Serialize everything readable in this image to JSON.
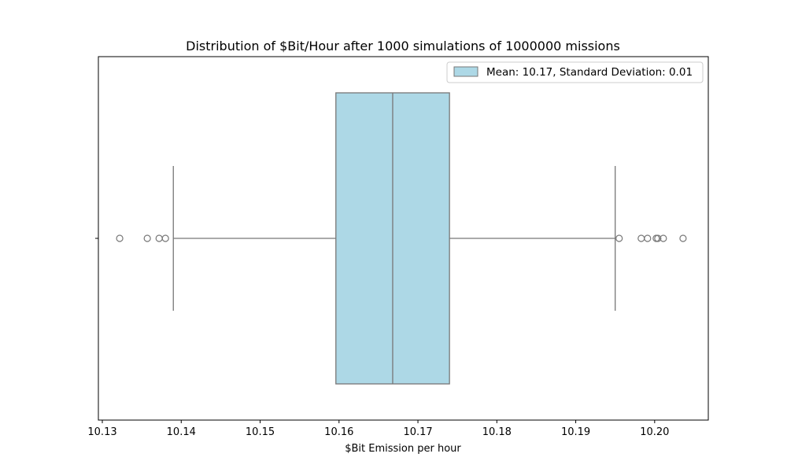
{
  "chart_data": {
    "type": "box",
    "title": "Distribution of $Bit/Hour after 1000 simulations of 1000000 missions",
    "xlabel": "$Bit Emission per hour",
    "ylabel": "",
    "xlim": [
      10.1295,
      10.2068
    ],
    "xticks": [
      10.13,
      10.14,
      10.15,
      10.16,
      10.17,
      10.18,
      10.19,
      10.2
    ],
    "xtick_labels": [
      "10.13",
      "10.14",
      "10.15",
      "10.16",
      "10.17",
      "10.18",
      "10.19",
      "10.20"
    ],
    "grid": false,
    "legend": {
      "position": "top-right",
      "entries": [
        {
          "label": "Mean: 10.17, Standard Deviation: 0.01",
          "color": "#add8e6"
        }
      ]
    },
    "box": {
      "whisker_low": 10.139,
      "q1": 10.1596,
      "median": 10.1668,
      "q3": 10.174,
      "whisker_high": 10.195,
      "outliers": [
        10.1322,
        10.1357,
        10.1372,
        10.138,
        10.1955,
        10.1983,
        10.1991,
        10.2002,
        10.2004,
        10.2011,
        10.2036
      ]
    },
    "colors": {
      "box_fill": "#add8e6",
      "line": "#777777"
    }
  }
}
